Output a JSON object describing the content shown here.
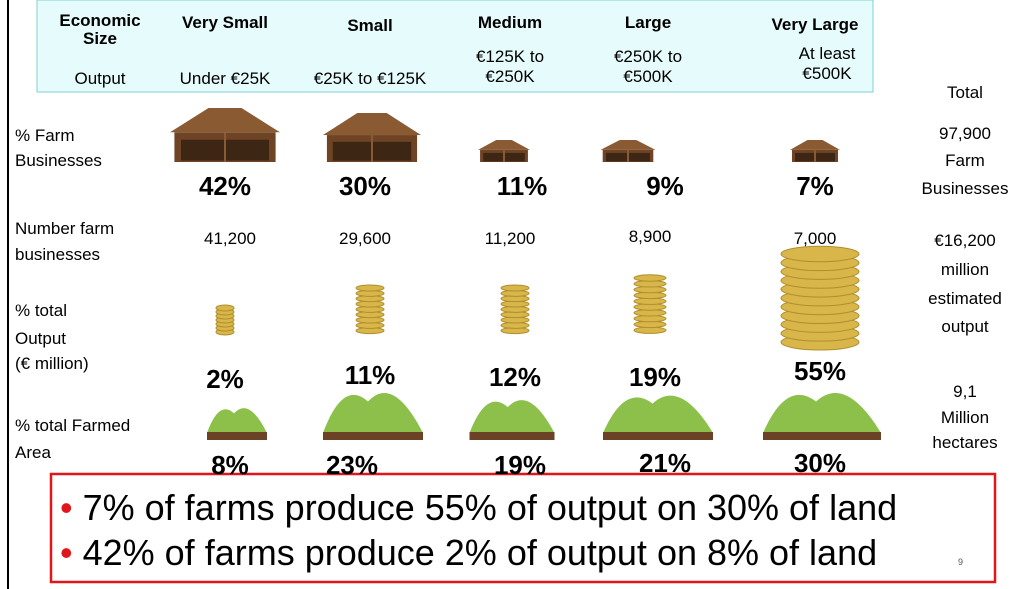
{
  "header": {
    "size_label": [
      "Economic",
      "Size"
    ],
    "output_label": "Output",
    "columns": [
      {
        "name": "Very Small",
        "output": [
          "Under €25K"
        ]
      },
      {
        "name": "Small",
        "output": [
          "€25K to €125K"
        ]
      },
      {
        "name": "Medium",
        "output": [
          "€125K to",
          "€250K"
        ]
      },
      {
        "name": "Large",
        "output": [
          "€250K to",
          "€500K"
        ]
      },
      {
        "name": "Very Large",
        "output": [
          "At least",
          "€500K"
        ]
      }
    ]
  },
  "total_label": "Total",
  "rows": [
    {
      "label": [
        "% Farm",
        "Businesses"
      ],
      "values": [
        "42%",
        "30%",
        "11%",
        "9%",
        "7%"
      ],
      "total": [
        "97,900",
        "Farm",
        "Businesses"
      ]
    },
    {
      "label": [
        "Number farm",
        "businesses"
      ],
      "values": [
        "41,200",
        "29,600",
        "11,200",
        "8,900",
        "7,000"
      ]
    },
    {
      "label": [
        "% total",
        "Output",
        "(€ million)"
      ],
      "values": [
        "2%",
        "11%",
        "12%",
        "19%",
        "55%"
      ],
      "total": [
        "€16,200",
        "million",
        "estimated",
        "output"
      ]
    },
    {
      "label": [
        "% total Farmed",
        "Area"
      ],
      "values": [
        "8%",
        "23%",
        "19%",
        "21%",
        "30%"
      ],
      "total": [
        "9,1",
        "Million",
        "hectares"
      ]
    }
  ],
  "bullets": [
    "7% of farms produce 55% of output on 30% of land",
    "42% of farms produce 2% of output on 8% of land"
  ],
  "page_number": "9"
}
